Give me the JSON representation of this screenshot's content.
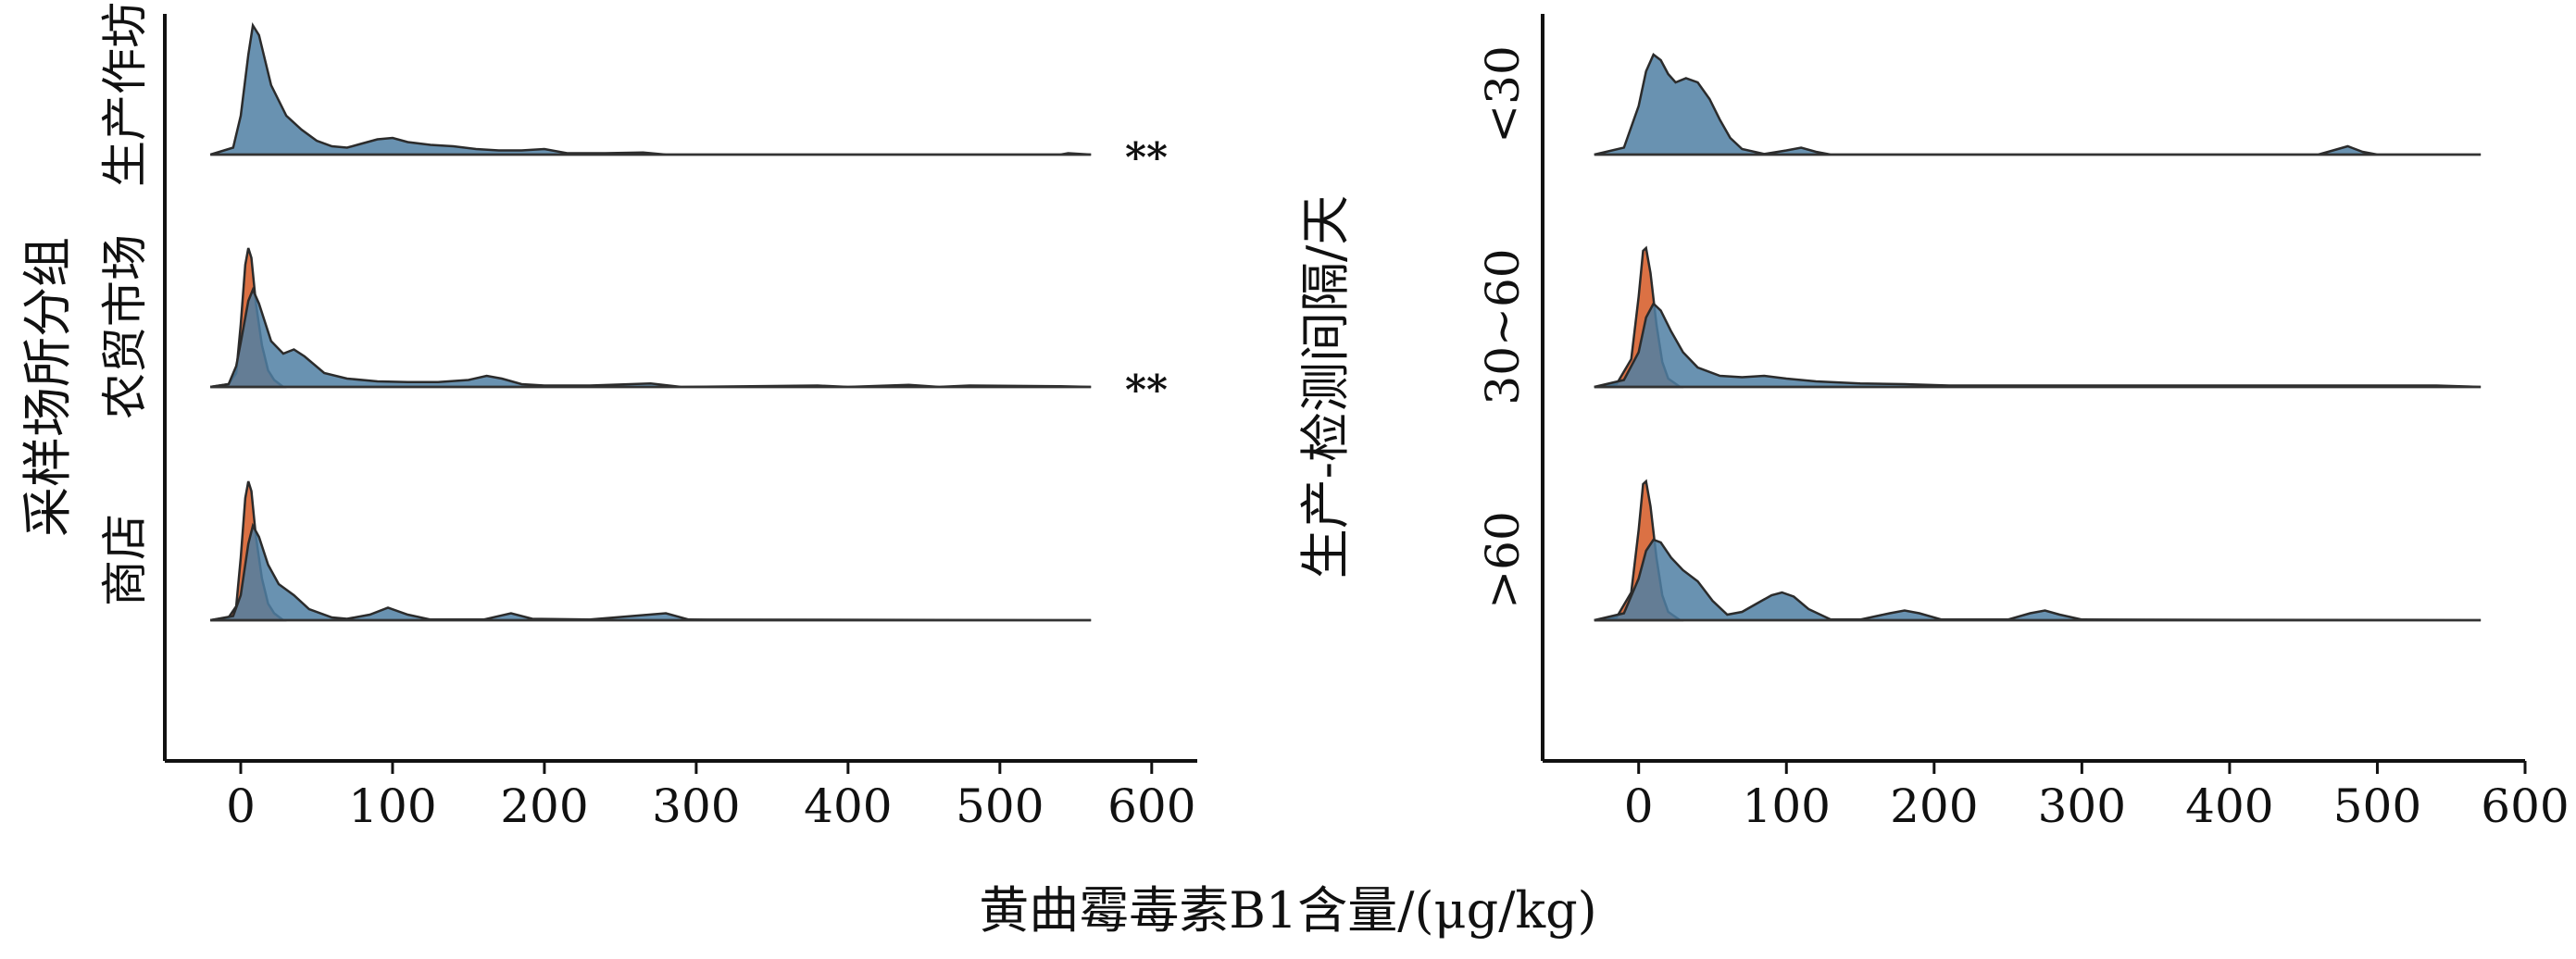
{
  "colors": {
    "orange": "#D9693A",
    "blue": "#4F7FA3",
    "outline": "#2B2B2B",
    "overlap": "#6A6660"
  },
  "chart_data": [
    {
      "type": "area",
      "ylabel": "采样场所分组",
      "xlim": [
        -50,
        630
      ],
      "xticks": [
        0,
        100,
        200,
        300,
        400,
        500,
        600
      ],
      "groups": [
        {
          "label": "生产作坊",
          "significance": "**",
          "series": [
            {
              "color": "blue",
              "values": [
                [
                  -20,
                  0
                ],
                [
                  -5,
                  0.05
                ],
                [
                  0,
                  0.28
                ],
                [
                  5,
                  0.72
                ],
                [
                  8,
                  0.93
                ],
                [
                  12,
                  0.86
                ],
                [
                  20,
                  0.5
                ],
                [
                  30,
                  0.28
                ],
                [
                  40,
                  0.18
                ],
                [
                  50,
                  0.1
                ],
                [
                  60,
                  0.06
                ],
                [
                  70,
                  0.05
                ],
                [
                  80,
                  0.08
                ],
                [
                  90,
                  0.11
                ],
                [
                  100,
                  0.12
                ],
                [
                  110,
                  0.09
                ],
                [
                  125,
                  0.07
                ],
                [
                  140,
                  0.06
                ],
                [
                  155,
                  0.04
                ],
                [
                  170,
                  0.03
                ],
                [
                  185,
                  0.03
                ],
                [
                  200,
                  0.04
                ],
                [
                  215,
                  0.01
                ],
                [
                  240,
                  0.01
                ],
                [
                  265,
                  0.015
                ],
                [
                  280,
                  0
                ],
                [
                  540,
                  0
                ],
                [
                  545,
                  0.01
                ],
                [
                  560,
                  0
                ]
              ]
            }
          ]
        },
        {
          "label": "农贸市场",
          "significance": "**",
          "series": [
            {
              "color": "orange",
              "values": [
                [
                  -20,
                  0
                ],
                [
                  -8,
                  0.02
                ],
                [
                  -3,
                  0.1
                ],
                [
                  0,
                  0.45
                ],
                [
                  3,
                  0.88
                ],
                [
                  5,
                  1.0
                ],
                [
                  7,
                  0.93
                ],
                [
                  10,
                  0.6
                ],
                [
                  14,
                  0.3
                ],
                [
                  18,
                  0.12
                ],
                [
                  22,
                  0.05
                ],
                [
                  28,
                  0
                ]
              ]
            },
            {
              "color": "blue",
              "values": [
                [
                  -20,
                  0
                ],
                [
                  -8,
                  0.02
                ],
                [
                  -3,
                  0.15
                ],
                [
                  0,
                  0.32
                ],
                [
                  5,
                  0.62
                ],
                [
                  8,
                  0.7
                ],
                [
                  12,
                  0.6
                ],
                [
                  20,
                  0.33
                ],
                [
                  28,
                  0.24
                ],
                [
                  35,
                  0.27
                ],
                [
                  42,
                  0.22
                ],
                [
                  55,
                  0.1
                ],
                [
                  70,
                  0.06
                ],
                [
                  90,
                  0.04
                ],
                [
                  110,
                  0.035
                ],
                [
                  130,
                  0.035
                ],
                [
                  150,
                  0.05
                ],
                [
                  162,
                  0.08
                ],
                [
                  172,
                  0.06
                ],
                [
                  185,
                  0.02
                ],
                [
                  200,
                  0.01
                ],
                [
                  230,
                  0.01
                ],
                [
                  270,
                  0.025
                ],
                [
                  290,
                  0
                ],
                [
                  380,
                  0.01
                ],
                [
                  400,
                  0
                ],
                [
                  440,
                  0.015
                ],
                [
                  460,
                  0
                ],
                [
                  480,
                  0.01
                ],
                [
                  540,
                  0.005
                ],
                [
                  560,
                  0
                ]
              ]
            }
          ]
        },
        {
          "label": "商店",
          "series": [
            {
              "color": "orange",
              "values": [
                [
                  -20,
                  0
                ],
                [
                  -8,
                  0.02
                ],
                [
                  -3,
                  0.1
                ],
                [
                  0,
                  0.45
                ],
                [
                  3,
                  0.88
                ],
                [
                  5,
                  1.0
                ],
                [
                  7,
                  0.93
                ],
                [
                  10,
                  0.6
                ],
                [
                  14,
                  0.3
                ],
                [
                  18,
                  0.12
                ],
                [
                  22,
                  0.05
                ],
                [
                  28,
                  0
                ]
              ]
            },
            {
              "color": "blue",
              "values": [
                [
                  -20,
                  0
                ],
                [
                  -5,
                  0.03
                ],
                [
                  0,
                  0.18
                ],
                [
                  5,
                  0.55
                ],
                [
                  8,
                  0.68
                ],
                [
                  12,
                  0.6
                ],
                [
                  18,
                  0.4
                ],
                [
                  25,
                  0.26
                ],
                [
                  35,
                  0.18
                ],
                [
                  45,
                  0.08
                ],
                [
                  60,
                  0.02
                ],
                [
                  70,
                  0.01
                ],
                [
                  85,
                  0.04
                ],
                [
                  97,
                  0.09
                ],
                [
                  110,
                  0.04
                ],
                [
                  125,
                  0.005
                ],
                [
                  160,
                  0.005
                ],
                [
                  178,
                  0.05
                ],
                [
                  192,
                  0.01
                ],
                [
                  230,
                  0.005
                ],
                [
                  280,
                  0.05
                ],
                [
                  295,
                  0.005
                ],
                [
                  560,
                  0
                ]
              ]
            }
          ]
        }
      ]
    },
    {
      "type": "area",
      "ylabel": "生产-检测间隔/天",
      "xlim": [
        -65,
        600
      ],
      "xticks": [
        0,
        100,
        200,
        300,
        400,
        500,
        600
      ],
      "groups": [
        {
          "label": "<30",
          "series": [
            {
              "color": "blue",
              "values": [
                [
                  -30,
                  0
                ],
                [
                  -10,
                  0.05
                ],
                [
                  0,
                  0.35
                ],
                [
                  5,
                  0.6
                ],
                [
                  10,
                  0.72
                ],
                [
                  15,
                  0.68
                ],
                [
                  20,
                  0.58
                ],
                [
                  25,
                  0.52
                ],
                [
                  32,
                  0.55
                ],
                [
                  40,
                  0.52
                ],
                [
                  48,
                  0.4
                ],
                [
                  55,
                  0.25
                ],
                [
                  62,
                  0.12
                ],
                [
                  70,
                  0.04
                ],
                [
                  85,
                  0.005
                ],
                [
                  100,
                  0.03
                ],
                [
                  110,
                  0.05
                ],
                [
                  120,
                  0.02
                ],
                [
                  130,
                  0
                ],
                [
                  460,
                  0
                ],
                [
                  470,
                  0.03
                ],
                [
                  480,
                  0.06
                ],
                [
                  490,
                  0.02
                ],
                [
                  500,
                  0
                ],
                [
                  570,
                  0
                ]
              ]
            }
          ]
        },
        {
          "label": "30~60",
          "series": [
            {
              "color": "orange",
              "values": [
                [
                  -30,
                  0
                ],
                [
                  -15,
                  0.02
                ],
                [
                  -5,
                  0.2
                ],
                [
                  0,
                  0.65
                ],
                [
                  3,
                  0.98
                ],
                [
                  5,
                  1.0
                ],
                [
                  8,
                  0.82
                ],
                [
                  12,
                  0.45
                ],
                [
                  16,
                  0.18
                ],
                [
                  20,
                  0.06
                ],
                [
                  28,
                  0
                ]
              ]
            },
            {
              "color": "blue",
              "values": [
                [
                  -30,
                  0
                ],
                [
                  -10,
                  0.05
                ],
                [
                  0,
                  0.25
                ],
                [
                  5,
                  0.5
                ],
                [
                  10,
                  0.6
                ],
                [
                  15,
                  0.55
                ],
                [
                  22,
                  0.4
                ],
                [
                  30,
                  0.25
                ],
                [
                  40,
                  0.14
                ],
                [
                  55,
                  0.08
                ],
                [
                  70,
                  0.07
                ],
                [
                  85,
                  0.08
                ],
                [
                  100,
                  0.06
                ],
                [
                  120,
                  0.04
                ],
                [
                  150,
                  0.025
                ],
                [
                  180,
                  0.02
                ],
                [
                  210,
                  0.01
                ],
                [
                  260,
                  0.01
                ],
                [
                  380,
                  0.01
                ],
                [
                  540,
                  0.01
                ],
                [
                  570,
                  0
                ]
              ]
            }
          ]
        },
        {
          "label": ">60",
          "series": [
            {
              "color": "orange",
              "values": [
                [
                  -30,
                  0
                ],
                [
                  -15,
                  0.02
                ],
                [
                  -5,
                  0.2
                ],
                [
                  0,
                  0.65
                ],
                [
                  3,
                  0.98
                ],
                [
                  5,
                  1.0
                ],
                [
                  8,
                  0.82
                ],
                [
                  12,
                  0.45
                ],
                [
                  16,
                  0.18
                ],
                [
                  20,
                  0.06
                ],
                [
                  28,
                  0
                ]
              ]
            },
            {
              "color": "blue",
              "values": [
                [
                  -30,
                  0
                ],
                [
                  -10,
                  0.05
                ],
                [
                  0,
                  0.3
                ],
                [
                  5,
                  0.5
                ],
                [
                  10,
                  0.58
                ],
                [
                  15,
                  0.56
                ],
                [
                  22,
                  0.45
                ],
                [
                  30,
                  0.36
                ],
                [
                  40,
                  0.28
                ],
                [
                  50,
                  0.14
                ],
                [
                  60,
                  0.04
                ],
                [
                  70,
                  0.06
                ],
                [
                  80,
                  0.12
                ],
                [
                  90,
                  0.18
                ],
                [
                  97,
                  0.2
                ],
                [
                  105,
                  0.17
                ],
                [
                  115,
                  0.08
                ],
                [
                  130,
                  0.005
                ],
                [
                  150,
                  0.005
                ],
                [
                  170,
                  0.05
                ],
                [
                  180,
                  0.07
                ],
                [
                  190,
                  0.05
                ],
                [
                  205,
                  0.005
                ],
                [
                  250,
                  0.005
                ],
                [
                  265,
                  0.05
                ],
                [
                  275,
                  0.07
                ],
                [
                  285,
                  0.04
                ],
                [
                  300,
                  0.005
                ],
                [
                  570,
                  0
                ]
              ]
            }
          ]
        }
      ]
    }
  ],
  "shared_xlabel": "黄曲霉毒素B1含量/(μg/kg)"
}
